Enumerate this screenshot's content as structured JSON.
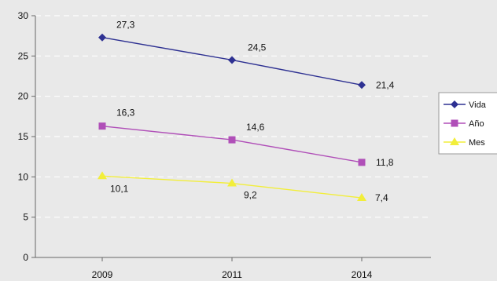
{
  "chart_data": {
    "type": "line",
    "categories": [
      "2009",
      "2011",
      "2014"
    ],
    "ylim": [
      0,
      30
    ],
    "yticks": [
      0,
      5,
      10,
      15,
      20,
      25,
      30
    ],
    "grid": true,
    "legend_position": "right",
    "series": [
      {
        "name": "Vida",
        "values": [
          27.3,
          24.5,
          21.4
        ],
        "labels": [
          "27,3",
          "24,5",
          "21,4"
        ],
        "color": "#2e3192",
        "marker": "diamond"
      },
      {
        "name": "Año",
        "values": [
          16.3,
          14.6,
          11.8
        ],
        "labels": [
          "16,3",
          "14,6",
          "11,8"
        ],
        "color": "#b04fb8",
        "marker": "square"
      },
      {
        "name": "Mes",
        "values": [
          10.1,
          9.2,
          7.4
        ],
        "labels": [
          "10,1",
          "9,2",
          "7,4"
        ],
        "color": "#f2ee3a",
        "marker": "triangle"
      }
    ]
  }
}
